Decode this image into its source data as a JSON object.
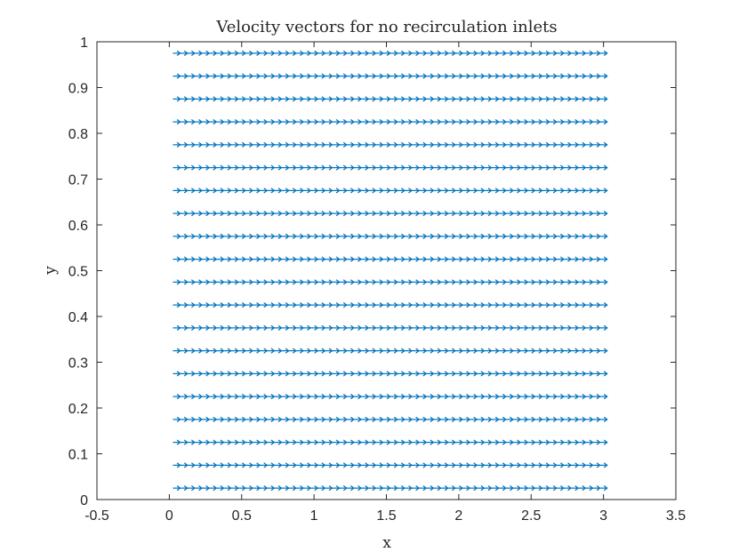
{
  "chart_data": {
    "type": "quiver",
    "title": "Velocity vectors for no recirculation inlets",
    "xlabel": "x",
    "ylabel": "y",
    "xlim": [
      -0.5,
      3.5
    ],
    "ylim": [
      0,
      1
    ],
    "xticks": [
      -0.5,
      0,
      0.5,
      1,
      1.5,
      2,
      2.5,
      3,
      3.5
    ],
    "xtick_labels": [
      "-0.5",
      "0",
      "0.5",
      "1",
      "1.5",
      "2",
      "2.5",
      "3",
      "3.5"
    ],
    "yticks": [
      0,
      0.1,
      0.2,
      0.3,
      0.4,
      0.5,
      0.6,
      0.7,
      0.8,
      0.9,
      1
    ],
    "ytick_labels": [
      "0",
      "0.1",
      "0.2",
      "0.3",
      "0.4",
      "0.5",
      "0.6",
      "0.7",
      "0.8",
      "0.9",
      "1"
    ],
    "grid": false,
    "vector_field": {
      "x_start": 0.025,
      "x_step": 0.05,
      "x_count": 60,
      "y_start": 0.025,
      "y_step": 0.05,
      "y_count": 20,
      "u": 0.05,
      "v": 0
    },
    "color": "#0072BD"
  }
}
